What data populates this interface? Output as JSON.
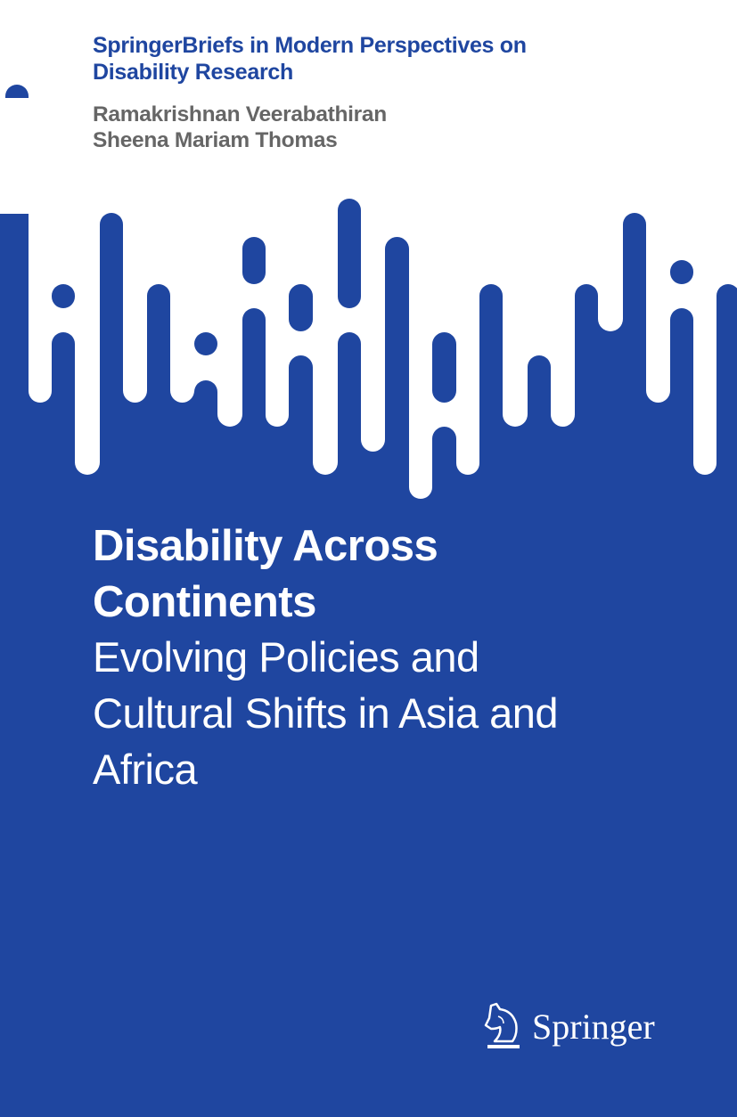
{
  "cover": {
    "series": [
      "SpringerBriefs in Modern Perspectives on",
      "Disability Research"
    ],
    "authors": [
      "Ramakrishnan Veerabathiran",
      "Sheena Mariam Thomas"
    ],
    "title": [
      "Disability Across",
      "Continents"
    ],
    "subtitle": [
      "Evolving Policies and",
      "Cultural Shifts in Asia and",
      "Africa"
    ],
    "publisher": "Springer",
    "publisher_logo_icon": "knight-horse-icon"
  },
  "colors": {
    "brand_blue": "#1f46a0",
    "author_gray": "#666666",
    "background_top": "#ffffff"
  }
}
